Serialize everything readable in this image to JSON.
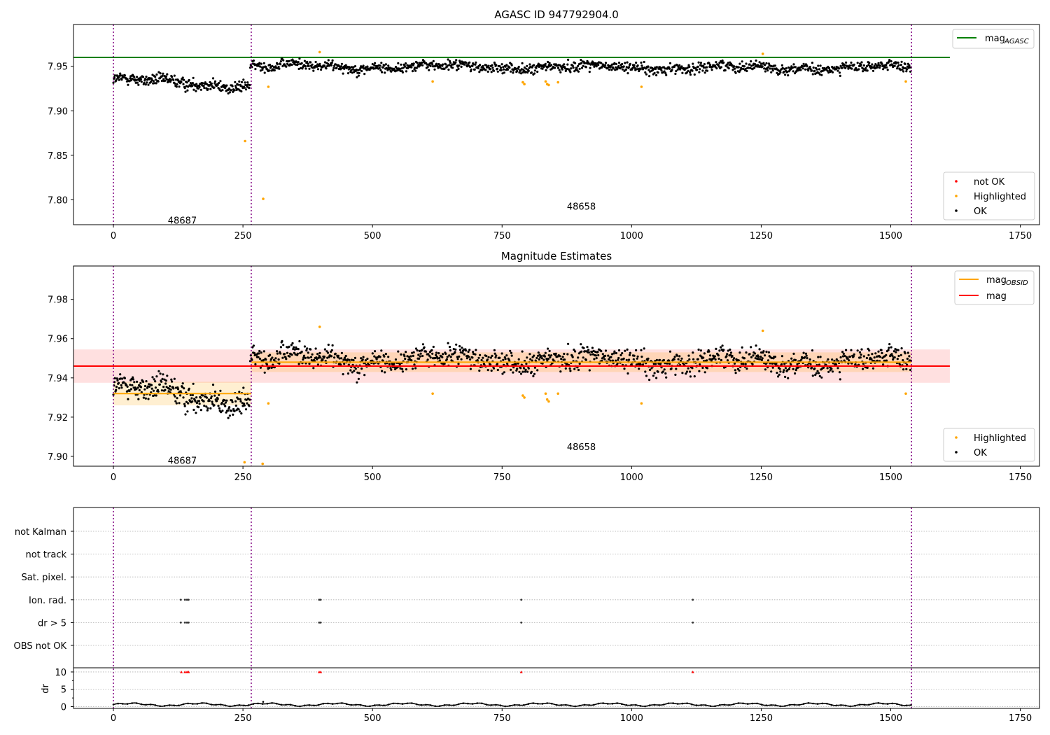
{
  "chart_data": [
    {
      "type": "scatter",
      "title": "AGASC ID 947792904.0",
      "xlim": [
        -77,
        1787
      ],
      "ylim": [
        7.772,
        7.997
      ],
      "x_ticks": [
        0,
        250,
        500,
        750,
        1000,
        1250,
        1500,
        1750
      ],
      "y_ticks": [
        7.8,
        7.85,
        7.9,
        7.95
      ],
      "y_tick_labels": [
        "7.80",
        "7.85",
        "7.90",
        "7.95"
      ],
      "obsid_boundaries": [
        0,
        266,
        1540
      ],
      "obsid_labels": [
        {
          "text": "48687",
          "x": 133,
          "y": 7.777
        },
        {
          "text": "48658",
          "x": 903,
          "y": 7.793
        }
      ],
      "lines": [
        {
          "name": "mag_AGASC",
          "y": 7.96,
          "x0": -77,
          "x1": 1614,
          "color": "#008000"
        }
      ],
      "legend_top": [
        {
          "label": "mag",
          "sub": "AGASC",
          "kind": "line",
          "color": "#008000"
        }
      ],
      "legend_bottom": [
        {
          "label": "not OK",
          "color": "#ff0000"
        },
        {
          "label": "Highlighted",
          "color": "#ffa500"
        },
        {
          "label": "OK",
          "color": "#000000"
        }
      ],
      "highlighted": [
        [
          254,
          7.866
        ],
        [
          289,
          7.801
        ],
        [
          299,
          7.927
        ],
        [
          398,
          7.966
        ],
        [
          616,
          7.933
        ],
        [
          790,
          7.932
        ],
        [
          793,
          7.93
        ],
        [
          834,
          7.933
        ],
        [
          837,
          7.93
        ],
        [
          840,
          7.929
        ],
        [
          858,
          7.932
        ],
        [
          1019,
          7.927
        ],
        [
          1253,
          7.964
        ],
        [
          1529,
          7.933
        ]
      ],
      "ok_segments": [
        {
          "x0": 0,
          "x1": 263,
          "n": 262,
          "mean_start": 7.935,
          "mean_end": 7.928,
          "noise": 0.0055
        },
        {
          "x0": 264,
          "x1": 1539,
          "n": 1140,
          "mean_start": 7.95,
          "mean_end": 7.948,
          "noise": 0.0048
        }
      ]
    },
    {
      "type": "scatter",
      "title": "Magnitude Estimates",
      "xlim": [
        -77,
        1787
      ],
      "ylim": [
        7.895,
        7.997
      ],
      "x_ticks": [
        0,
        250,
        500,
        750,
        1000,
        1250,
        1500,
        1750
      ],
      "y_ticks": [
        7.9,
        7.92,
        7.94,
        7.96,
        7.98
      ],
      "y_tick_labels": [
        "7.90",
        "7.92",
        "7.94",
        "7.96",
        "7.98"
      ],
      "obsid_boundaries": [
        0,
        266,
        1540
      ],
      "obsid_labels": [
        {
          "text": "48687",
          "x": 133,
          "y": 7.898
        },
        {
          "text": "48658",
          "x": 903,
          "y": 7.905
        }
      ],
      "mag": {
        "y": 7.946,
        "band": [
          7.9375,
          7.9545
        ],
        "x0": -77,
        "x1": 1614,
        "color": "#ff0000"
      },
      "mag_obsid": [
        {
          "x0": 0,
          "x1": 266,
          "y": 7.932,
          "band": [
            7.926,
            7.938
          ]
        },
        {
          "x0": 266,
          "x1": 1540,
          "y": 7.948,
          "band": [
            7.943,
            7.953
          ]
        }
      ],
      "legend_top": [
        {
          "label": "mag",
          "sub": "OBSID",
          "kind": "line",
          "color": "#ffa500"
        },
        {
          "label": "mag",
          "sub": "",
          "kind": "line",
          "color": "#ff0000"
        }
      ],
      "legend_bottom": [
        {
          "label": "Highlighted",
          "color": "#ffa500"
        },
        {
          "label": "OK",
          "color": "#000000"
        }
      ],
      "highlighted": [
        [
          253,
          7.897
        ],
        [
          288,
          7.896
        ],
        [
          299,
          7.927
        ],
        [
          398,
          7.966
        ],
        [
          616,
          7.932
        ],
        [
          790,
          7.931
        ],
        [
          793,
          7.93
        ],
        [
          834,
          7.932
        ],
        [
          837,
          7.929
        ],
        [
          840,
          7.928
        ],
        [
          858,
          7.932
        ],
        [
          1019,
          7.927
        ],
        [
          1253,
          7.964
        ],
        [
          1529,
          7.932
        ]
      ]
    },
    {
      "type": "scatter",
      "xlim": [
        -77,
        1787
      ],
      "x_ticks": [
        0,
        250,
        500,
        750,
        1000,
        1250,
        1500,
        1750
      ],
      "obsid_boundaries": [
        0,
        266,
        1540
      ],
      "flag_rows": [
        "not Kalman",
        "not track",
        "Sat. pixel.",
        "Ion. rad.",
        "dr > 5",
        "OBS not OK"
      ],
      "flag_points": [
        {
          "row": "Ion. rad.",
          "x": [
            130,
            138,
            142,
            145,
            397,
            400,
            787,
            1118
          ]
        },
        {
          "row": "dr > 5",
          "x": [
            130,
            138,
            142,
            145,
            397,
            400,
            787,
            1118
          ]
        }
      ],
      "dr": {
        "ylabel": "dr",
        "ylim": [
          -0.5,
          11.2
        ],
        "y_ticks": [
          0,
          5,
          10
        ],
        "y_tick_labels": [
          "0",
          "5",
          "10"
        ],
        "clipped_points": {
          "x": [
            131,
            138,
            142,
            145,
            397,
            400,
            787,
            1118
          ],
          "y": 10,
          "color": "#ff0000"
        },
        "typical_range": [
          0.1,
          1.1
        ],
        "outlier": [
          289,
          1.4
        ]
      }
    }
  ]
}
